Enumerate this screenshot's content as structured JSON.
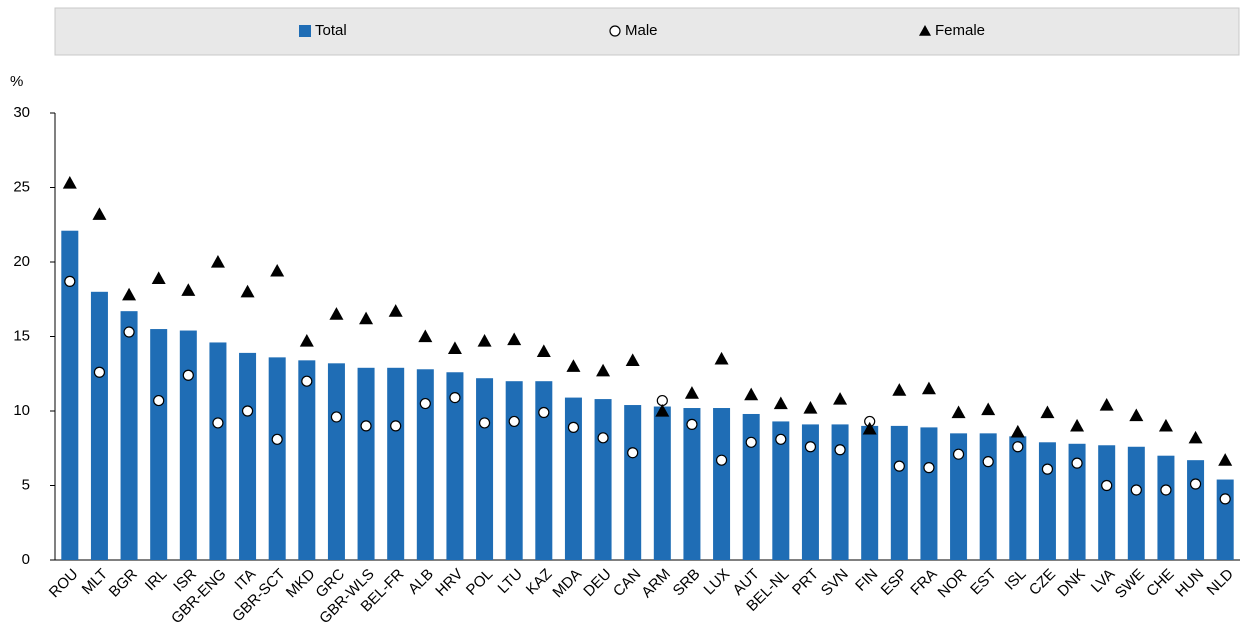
{
  "chart_data": {
    "type": "bar",
    "y_unit_label": "%",
    "categories": [
      "ROU",
      "MLT",
      "BGR",
      "IRL",
      "ISR",
      "GBR-ENG",
      "ITA",
      "GBR-SCT",
      "MKD",
      "GRC",
      "GBR-WLS",
      "BEL-FR",
      "ALB",
      "HRV",
      "POL",
      "LTU",
      "KAZ",
      "MDA",
      "DEU",
      "CAN",
      "ARM",
      "SRB",
      "LUX",
      "AUT",
      "BEL-NL",
      "PRT",
      "SVN",
      "FIN",
      "ESP",
      "FRA",
      "NOR",
      "EST",
      "ISL",
      "CZE",
      "DNK",
      "LVA",
      "SWE",
      "CHE",
      "HUN",
      "NLD"
    ],
    "series": [
      {
        "name": "Total",
        "marker": "bar",
        "color": "#1f6db5",
        "values": [
          22.1,
          18.0,
          16.7,
          15.5,
          15.4,
          14.6,
          13.9,
          13.6,
          13.4,
          13.2,
          12.9,
          12.9,
          12.8,
          12.6,
          12.2,
          12.0,
          12.0,
          10.9,
          10.8,
          10.4,
          10.3,
          10.2,
          10.2,
          9.8,
          9.3,
          9.1,
          9.1,
          9.0,
          9.0,
          8.9,
          8.5,
          8.5,
          8.3,
          7.9,
          7.8,
          7.7,
          7.6,
          7.0,
          6.7,
          5.4
        ]
      },
      {
        "name": "Male",
        "marker": "circle",
        "color": "#ffffff",
        "values": [
          18.7,
          12.6,
          15.3,
          10.7,
          12.4,
          9.2,
          10.0,
          8.1,
          12.0,
          9.6,
          9.0,
          9.0,
          10.5,
          10.9,
          9.2,
          9.3,
          9.9,
          8.9,
          8.2,
          7.2,
          10.7,
          9.1,
          6.7,
          7.9,
          8.1,
          7.6,
          7.4,
          9.3,
          6.3,
          6.2,
          7.1,
          6.6,
          7.6,
          6.1,
          6.5,
          5.0,
          4.7,
          4.7,
          5.1,
          4.1
        ]
      },
      {
        "name": "Female",
        "marker": "triangle",
        "color": "#000000",
        "values": [
          25.3,
          23.2,
          17.8,
          18.9,
          18.1,
          20.0,
          18.0,
          19.4,
          14.7,
          16.5,
          16.2,
          16.7,
          15.0,
          14.2,
          14.7,
          14.8,
          14.0,
          13.0,
          12.7,
          13.4,
          10.0,
          11.2,
          13.5,
          11.1,
          10.5,
          10.2,
          10.8,
          8.8,
          11.4,
          11.5,
          9.9,
          10.1,
          8.6,
          9.9,
          9.0,
          10.4,
          9.7,
          9.0,
          8.2,
          6.7
        ]
      }
    ],
    "ylim": [
      0,
      30
    ],
    "yticks": [
      0,
      5,
      10,
      15,
      20,
      25,
      30
    ],
    "grid": false,
    "legend": "top"
  }
}
